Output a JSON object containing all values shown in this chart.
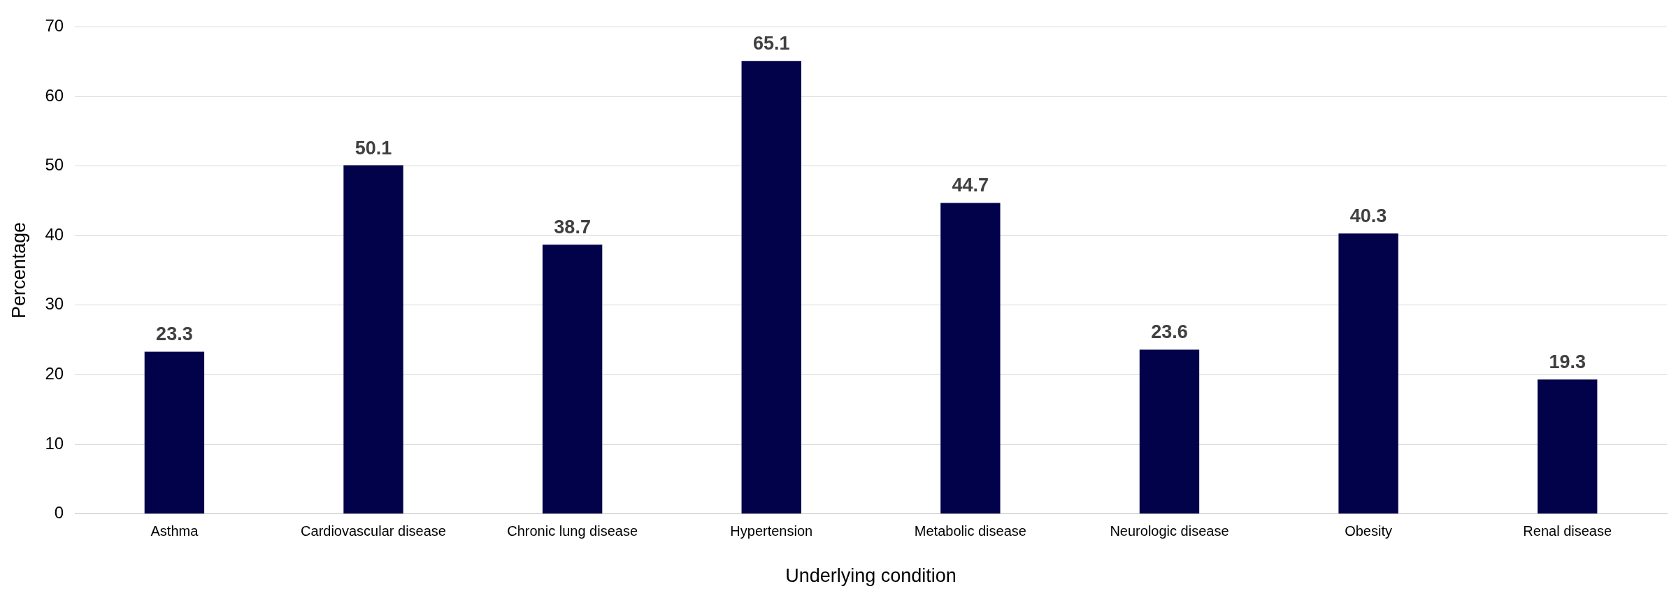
{
  "chart_data": {
    "type": "bar",
    "xlabel": "Underlying condition",
    "ylabel": "Percentage",
    "categories": [
      "Asthma",
      "Cardiovascular disease",
      "Chronic lung disease",
      "Hypertension",
      "Metabolic disease",
      "Neurologic disease",
      "Obesity",
      "Renal disease"
    ],
    "values": [
      23.3,
      50.1,
      38.7,
      65.1,
      44.7,
      23.6,
      40.3,
      19.3
    ],
    "color": "#02024a",
    "ylim": [
      0,
      70
    ],
    "yticks": [
      0,
      10,
      20,
      30,
      40,
      50,
      60,
      70
    ],
    "grid": "y",
    "legend": false,
    "data_labels": true
  }
}
